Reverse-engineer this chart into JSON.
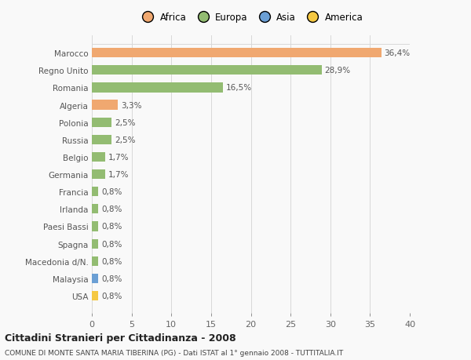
{
  "categories": [
    "USA",
    "Malaysia",
    "Macedonia d/N.",
    "Spagna",
    "Paesi Bassi",
    "Irlanda",
    "Francia",
    "Germania",
    "Belgio",
    "Russia",
    "Polonia",
    "Algeria",
    "Romania",
    "Regno Unito",
    "Marocco"
  ],
  "values": [
    0.8,
    0.8,
    0.8,
    0.8,
    0.8,
    0.8,
    0.8,
    1.7,
    1.7,
    2.5,
    2.5,
    3.3,
    16.5,
    28.9,
    36.4
  ],
  "labels": [
    "0,8%",
    "0,8%",
    "0,8%",
    "0,8%",
    "0,8%",
    "0,8%",
    "0,8%",
    "1,7%",
    "1,7%",
    "2,5%",
    "2,5%",
    "3,3%",
    "16,5%",
    "28,9%",
    "36,4%"
  ],
  "colors": [
    "#f5c842",
    "#6b9fd4",
    "#93bc72",
    "#93bc72",
    "#93bc72",
    "#93bc72",
    "#93bc72",
    "#93bc72",
    "#93bc72",
    "#93bc72",
    "#93bc72",
    "#f0a870",
    "#93bc72",
    "#93bc72",
    "#f0a870"
  ],
  "legend": {
    "Africa": "#f0a870",
    "Europa": "#93bc72",
    "Asia": "#6b9fd4",
    "America": "#f5c842"
  },
  "xlim": [
    0,
    40
  ],
  "xticks": [
    0,
    5,
    10,
    15,
    20,
    25,
    30,
    35,
    40
  ],
  "title": "Cittadini Stranieri per Cittadinanza - 2008",
  "subtitle": "COMUNE DI MONTE SANTA MARIA TIBERINA (PG) - Dati ISTAT al 1° gennaio 2008 - TUTTITALIA.IT",
  "background_color": "#f9f9f9",
  "bar_height": 0.55,
  "grid_color": "#d8d8d8"
}
